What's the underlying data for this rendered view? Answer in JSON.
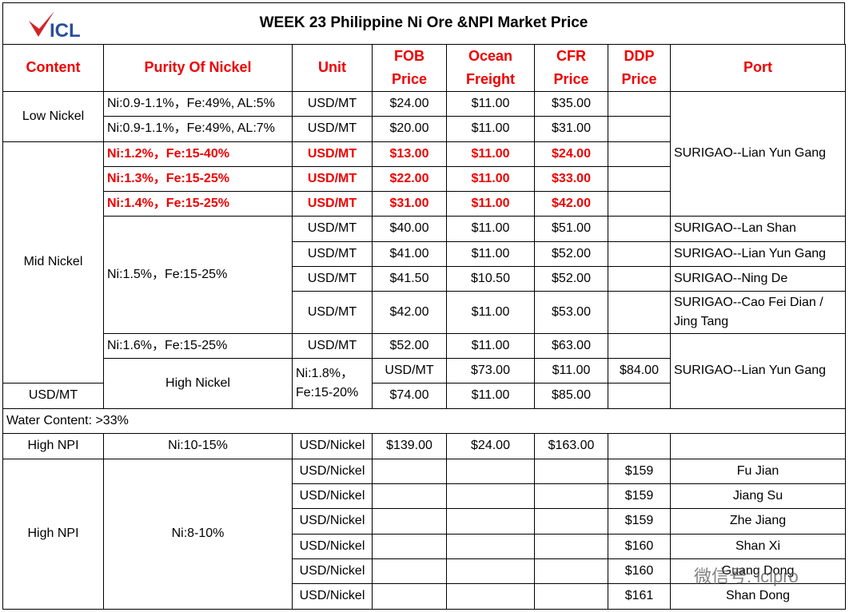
{
  "header": {
    "logo": "ICL",
    "title": "WEEK 23 Philippine Ni Ore &NPI Market Price"
  },
  "table": {
    "columns": [
      "Content",
      "Purity Of Nickel",
      "Unit",
      "FOB Price",
      "Ocean Freight",
      "CFR Price",
      "DDP Price",
      "Port"
    ],
    "rows": [
      [
        "Low Nickel",
        "Ni:0.9-1.1%，Fe:49%, AL:5%",
        "USD/MT",
        "$24.00",
        "$11.00",
        "$35.00",
        "SURIGAO--Lian Yun Gang"
      ],
      [
        "Ni:0.9-1.1%，Fe:49%, AL:7%",
        "USD/MT",
        "$20.00",
        "$11.00",
        "$31.00"
      ],
      [
        "Mid Nickel",
        "Ni:1.2%，Fe:15-40%",
        "USD/MT",
        "$13.00",
        "$11.00",
        "$24.00"
      ],
      [
        "Ni:1.3%，Fe:15-25%",
        "USD/MT",
        "$22.00",
        "$11.00",
        "$33.00"
      ],
      [
        "Ni:1.4%，Fe:15-25%",
        "USD/MT",
        "$31.00",
        "$11.00",
        "$42.00"
      ],
      [
        "Ni:1.5%，Fe:15-25%",
        "USD/MT",
        "$40.00",
        "$11.00",
        "$51.00",
        "SURIGAO--Lan Shan"
      ],
      [
        "USD/MT",
        "$41.00",
        "$11.00",
        "$52.00",
        "SURIGAO--Lian Yun Gang"
      ],
      [
        "USD/MT",
        "$41.50",
        "$10.50",
        "$52.00",
        "SURIGAO--Ning De"
      ],
      [
        "USD/MT",
        "$42.00",
        "$11.00",
        "$53.00",
        "SURIGAO--Cao Fei Dian / Jing Tang"
      ],
      [
        "Ni:1.6%，Fe:15-25%",
        "USD/MT",
        "$52.00",
        "$11.00",
        "$63.00",
        "SURIGAO--Lian Yun Gang"
      ],
      [
        "High Nickel",
        "Ni:1.8%，Fe:15-20%",
        "USD/MT",
        "$73.00",
        "$11.00",
        "$84.00"
      ],
      [
        "USD/MT",
        "$74.00",
        "$11.00",
        "$85.00"
      ],
      [
        "Water Content: >33%"
      ],
      [
        "High NPI",
        "Ni:10-15%",
        "USD/Nickel",
        "$139.00",
        "$24.00",
        "$163.00"
      ],
      [
        "High NPI",
        "Ni:8-10%",
        "USD/Nickel",
        "$159",
        "Fu Jian"
      ],
      [
        "USD/Nickel",
        "$159",
        "Jiang Su"
      ],
      [
        "USD/Nickel",
        "$159",
        "Zhe Jiang"
      ],
      [
        "USD/Nickel",
        "$160",
        "Shan Xi"
      ],
      [
        "USD/Nickel",
        "$160",
        "Guang Dong"
      ],
      [
        "USD/Nickel",
        "$161",
        "Shan Dong"
      ]
    ]
  },
  "watermark": "微信号: iclpro"
}
